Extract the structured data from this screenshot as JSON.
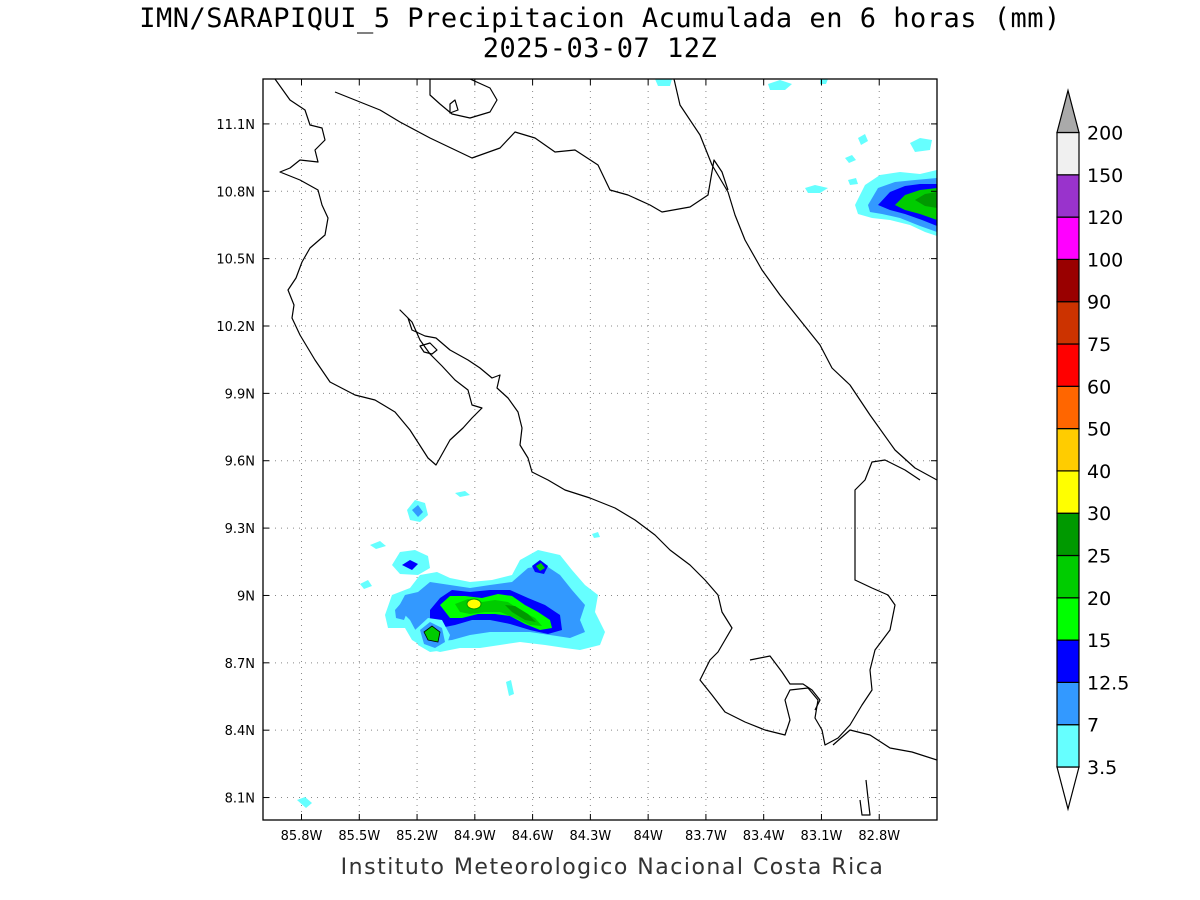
{
  "header": {
    "title": "IMN/SARAPIQUI_5 Precipitacion Acumulada en 6 horas (mm)",
    "subtitle": "2025-03-07 12Z"
  },
  "footer": {
    "credit": "Instituto Meteorologico Nacional Costa Rica"
  },
  "map": {
    "lon_range": [
      -86.0,
      -82.5
    ],
    "lat_range": [
      8.0,
      11.3
    ],
    "lat_ticks": [
      {
        "value": 11.1,
        "label": "11.1N"
      },
      {
        "value": 10.8,
        "label": "10.8N"
      },
      {
        "value": 10.5,
        "label": "10.5N"
      },
      {
        "value": 10.2,
        "label": "10.2N"
      },
      {
        "value": 9.9,
        "label": "9.9N"
      },
      {
        "value": 9.6,
        "label": "9.6N"
      },
      {
        "value": 9.3,
        "label": "9.3N"
      },
      {
        "value": 9.0,
        "label": "9N"
      },
      {
        "value": 8.7,
        "label": "8.7N"
      },
      {
        "value": 8.4,
        "label": "8.4N"
      },
      {
        "value": 8.1,
        "label": "8.1N"
      }
    ],
    "lon_ticks": [
      {
        "value": -85.8,
        "label": "85.8W"
      },
      {
        "value": -85.5,
        "label": "85.5W"
      },
      {
        "value": -85.2,
        "label": "85.2W"
      },
      {
        "value": -84.9,
        "label": "84.9W"
      },
      {
        "value": -84.6,
        "label": "84.6W"
      },
      {
        "value": -84.3,
        "label": "84.3W"
      },
      {
        "value": -84.0,
        "label": "84W"
      },
      {
        "value": -83.7,
        "label": "83.7W"
      },
      {
        "value": -83.4,
        "label": "83.4W"
      },
      {
        "value": -83.1,
        "label": "83.1W"
      },
      {
        "value": -82.8,
        "label": "82.8W"
      }
    ],
    "grid": true
  },
  "colorbar": {
    "levels": [
      {
        "label": "3.5",
        "color": "#66ffff"
      },
      {
        "label": "7",
        "color": "#3399ff"
      },
      {
        "label": "12.5",
        "color": "#0000ff"
      },
      {
        "label": "15",
        "color": "#00ff00"
      },
      {
        "label": "20",
        "color": "#00cc00"
      },
      {
        "label": "25",
        "color": "#009900"
      },
      {
        "label": "30",
        "color": "#ffff00"
      },
      {
        "label": "40",
        "color": "#ffcc00"
      },
      {
        "label": "50",
        "color": "#ff6600"
      },
      {
        "label": "60",
        "color": "#ff0000"
      },
      {
        "label": "75",
        "color": "#cc3300"
      },
      {
        "label": "90",
        "color": "#990000"
      },
      {
        "label": "100",
        "color": "#ff00ff"
      },
      {
        "label": "120",
        "color": "#9933cc"
      },
      {
        "label": "150",
        "color": "#f0f0f0"
      },
      {
        "label": "200",
        "color": "#aaaaaa"
      }
    ]
  }
}
